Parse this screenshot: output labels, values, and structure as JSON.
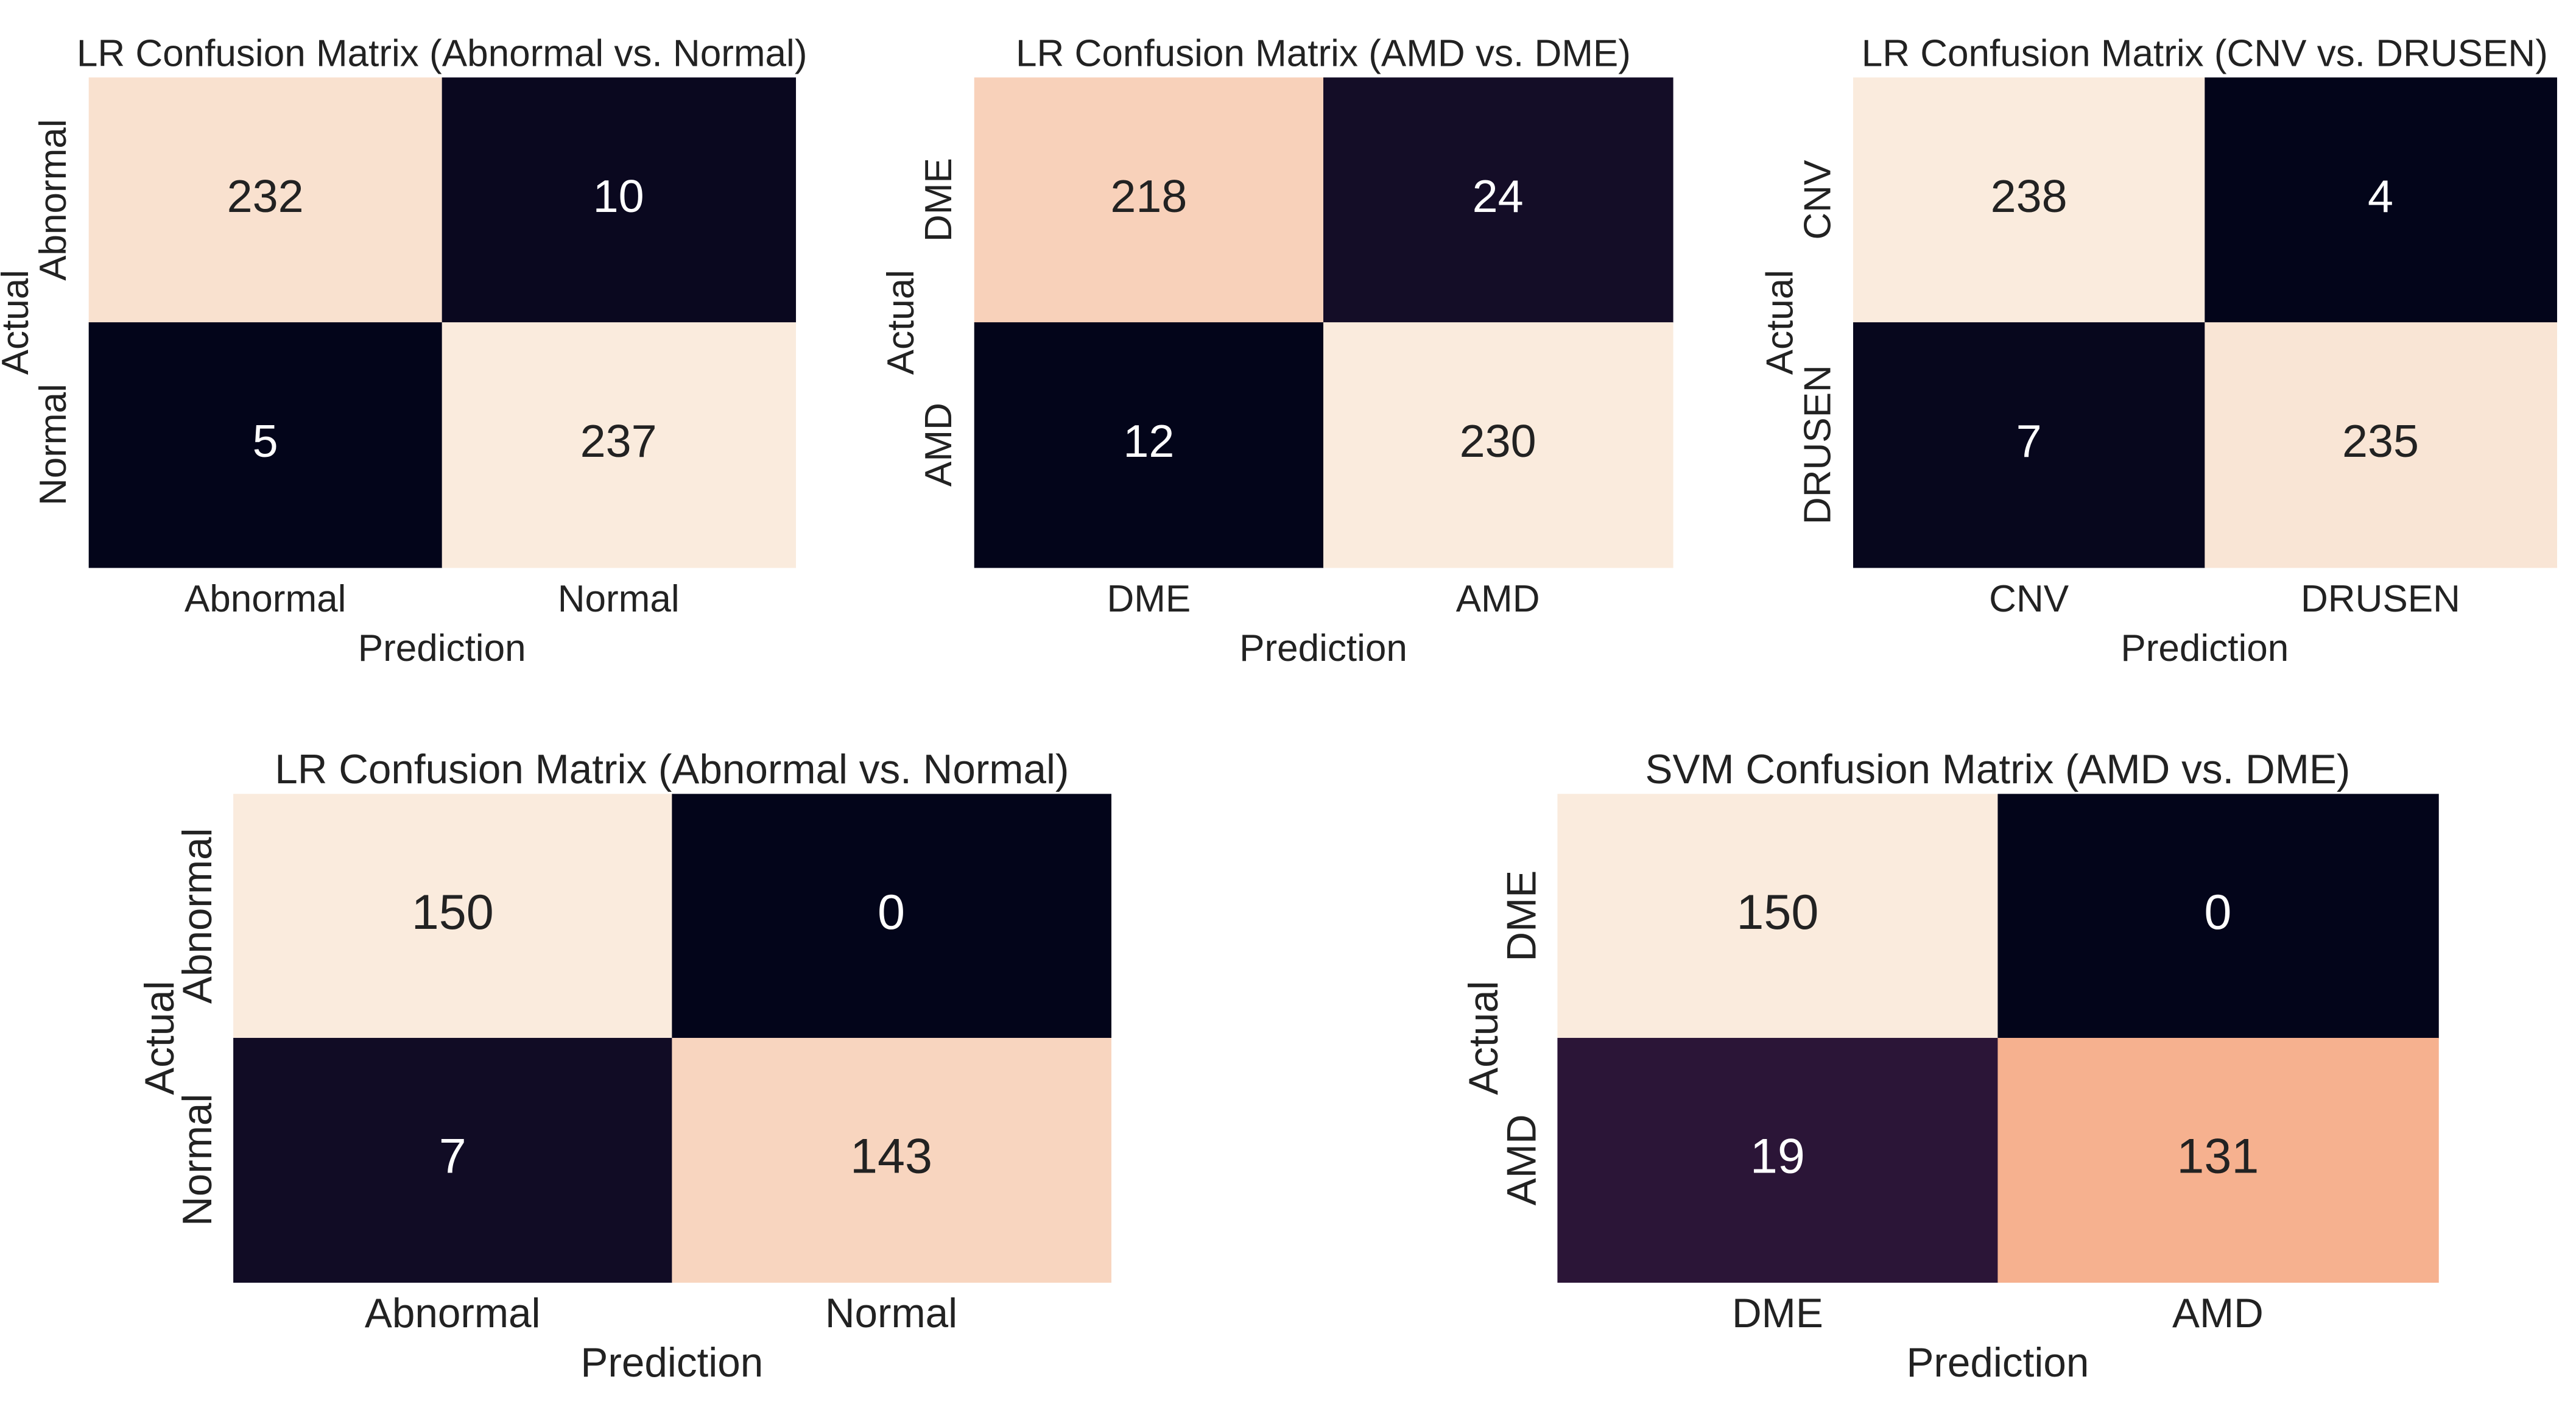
{
  "chart_data": [
    {
      "type": "heatmap",
      "title": "LR Confusion Matrix (Abnormal vs. Normal)",
      "xlabel": "Prediction",
      "ylabel": "Actual",
      "x_categories": [
        "Abnormal",
        "Normal"
      ],
      "y_categories": [
        "Abnormal",
        "Normal"
      ],
      "values": [
        [
          232,
          10
        ],
        [
          5,
          237
        ]
      ]
    },
    {
      "type": "heatmap",
      "title": "LR Confusion Matrix (AMD vs. DME)",
      "xlabel": "Prediction",
      "ylabel": "Actual",
      "x_categories": [
        "DME",
        "AMD"
      ],
      "y_categories": [
        "DME",
        "AMD"
      ],
      "values": [
        [
          218,
          24
        ],
        [
          12,
          230
        ]
      ]
    },
    {
      "type": "heatmap",
      "title": "LR Confusion Matrix (CNV vs. DRUSEN)",
      "xlabel": "Prediction",
      "ylabel": "Actual",
      "x_categories": [
        "CNV",
        "DRUSEN"
      ],
      "y_categories": [
        "CNV",
        "DRUSEN"
      ],
      "values": [
        [
          238,
          4
        ],
        [
          7,
          235
        ]
      ]
    },
    {
      "type": "heatmap",
      "title": "LR Confusion Matrix (Abnormal vs. Normal)",
      "xlabel": "Prediction",
      "ylabel": "Actual",
      "x_categories": [
        "Abnormal",
        "Normal"
      ],
      "y_categories": [
        "Abnormal",
        "Normal"
      ],
      "values": [
        [
          150,
          0
        ],
        [
          7,
          143
        ]
      ]
    },
    {
      "type": "heatmap",
      "title": "SVM Confusion Matrix (AMD vs. DME)",
      "xlabel": "Prediction",
      "ylabel": "Actual",
      "x_categories": [
        "DME",
        "AMD"
      ],
      "y_categories": [
        "DME",
        "AMD"
      ],
      "values": [
        [
          150,
          0
        ],
        [
          19,
          131
        ]
      ]
    }
  ]
}
